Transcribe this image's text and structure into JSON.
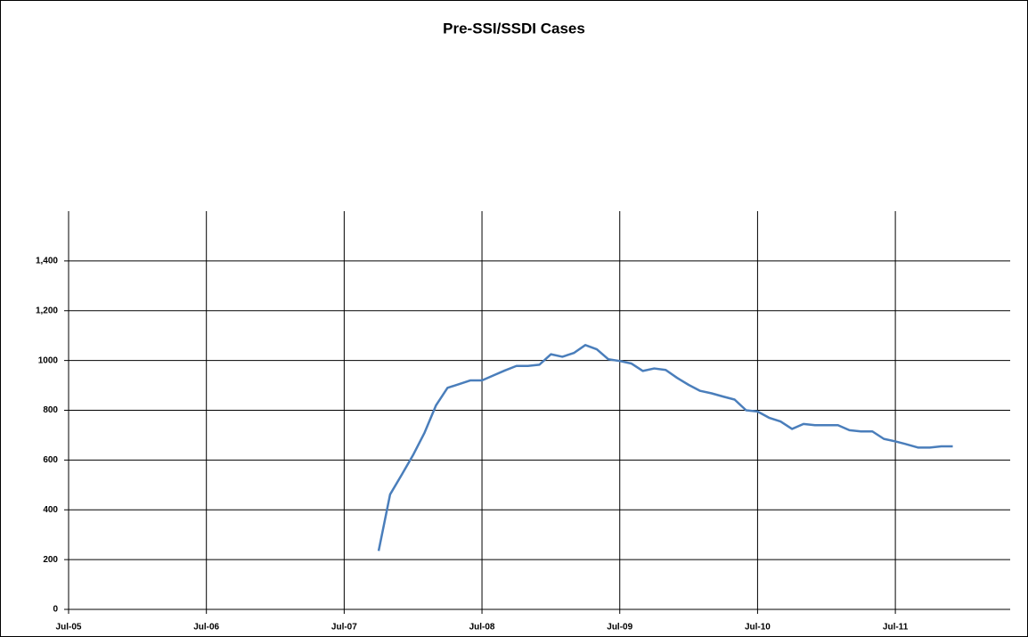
{
  "chart_data": {
    "type": "line",
    "title": "Pre-SSI/SSDI Cases",
    "x": [
      "Oct-07",
      "Nov-07",
      "Dec-07",
      "Jan-08",
      "Feb-08",
      "Mar-08",
      "Apr-08",
      "May-08",
      "Jun-08",
      "Jul-08",
      "Aug-08",
      "Sep-08",
      "Oct-08",
      "Nov-08",
      "Dec-08",
      "Jan-09",
      "Feb-09",
      "Mar-09",
      "Apr-09",
      "May-09",
      "Jun-09",
      "Jul-09",
      "Aug-09",
      "Sep-09",
      "Oct-09",
      "Nov-09",
      "Dec-09",
      "Jan-10",
      "Feb-10",
      "Mar-10",
      "Apr-10",
      "May-10",
      "Jun-10",
      "Jul-10",
      "Aug-10",
      "Sep-10",
      "Oct-10",
      "Nov-10",
      "Dec-10",
      "Jan-11",
      "Feb-11",
      "Mar-11",
      "Apr-11",
      "May-11",
      "Jun-11",
      "Jul-11",
      "Aug-11",
      "Sep-11",
      "Oct-11",
      "Nov-11",
      "Dec-11"
    ],
    "values": [
      235,
      462,
      540,
      620,
      710,
      820,
      890,
      905,
      920,
      920,
      940,
      960,
      978,
      978,
      983,
      1025,
      1015,
      1030,
      1062,
      1045,
      1005,
      998,
      988,
      958,
      968,
      962,
      930,
      902,
      878,
      868,
      855,
      843,
      800,
      795,
      770,
      755,
      725,
      745,
      740,
      740,
      740,
      720,
      715,
      715,
      685,
      675,
      663,
      650,
      650,
      655,
      655
    ],
    "color": "#4a7ebb",
    "xlim": [
      "Jul-05",
      "May-12"
    ],
    "xticks": [
      "Jul-05",
      "Jul-06",
      "Jul-07",
      "Jul-08",
      "Jul-09",
      "Jul-10",
      "Jul-11"
    ],
    "ylim": [
      0,
      1600
    ],
    "yticks": [
      0,
      200,
      400,
      600,
      800,
      1000,
      {
        "value": 1200,
        "label": "1,200"
      },
      {
        "value": 1400,
        "label": "1,400"
      }
    ],
    "grid": true
  }
}
